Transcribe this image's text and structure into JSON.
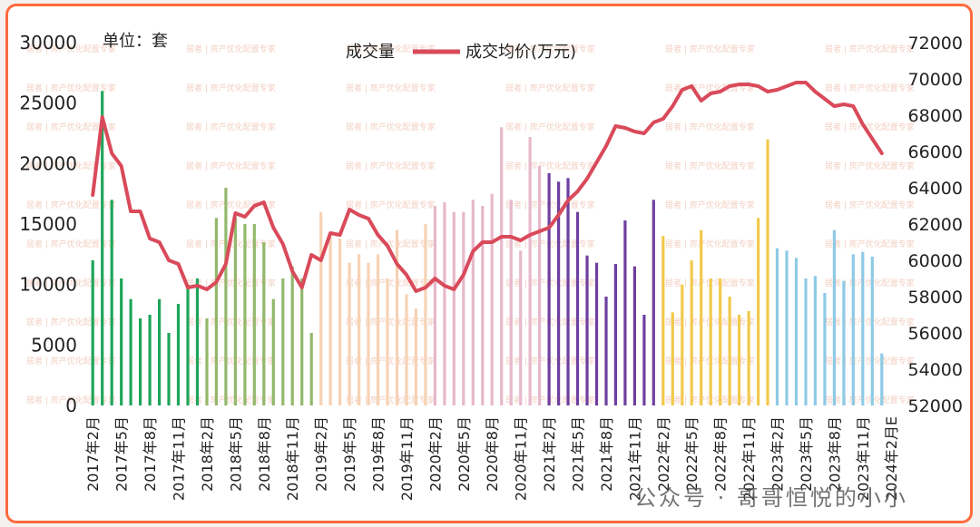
{
  "chart_data": {
    "type": "bar+line",
    "unit_label": "单位：套",
    "legend": [
      "成交量",
      "成交均价(万元)"
    ],
    "y_left": {
      "min": 0,
      "max": 30000,
      "ticks": [
        "0",
        "5000",
        "10000",
        "15000",
        "20000",
        "25000",
        "30000"
      ]
    },
    "y_right": {
      "min": 52000,
      "max": 72000,
      "ticks": [
        "52000",
        "54000",
        "56000",
        "58000",
        "60000",
        "62000",
        "64000",
        "66000",
        "68000",
        "70000",
        "72000"
      ]
    },
    "x_labels": [
      "2017年2月",
      "2017年5月",
      "2017年8月",
      "2017年11月",
      "2018年2月",
      "2018年5月",
      "2018年8月",
      "2018年11月",
      "2019年2月",
      "2019年5月",
      "2019年8月",
      "2019年11月",
      "2020年2月",
      "2020年5月",
      "2020年8月",
      "2020年11月",
      "2021年2月",
      "2021年5月",
      "2021年8月",
      "2021年11月",
      "2022年2月",
      "2022年5月",
      "2022年8月",
      "2022年11月",
      "2023年2月",
      "2023年5月",
      "2023年8月",
      "2023年11月",
      "2024年2月E"
    ],
    "volume": [
      12000,
      26000,
      17000,
      10500,
      8800,
      7200,
      7500,
      8800,
      6000,
      8400,
      10000,
      10500,
      7200,
      15500,
      18000,
      15500,
      15000,
      15000,
      13500,
      8800,
      10500,
      11500,
      10500,
      6000,
      16000,
      14000,
      13800,
      11800,
      12500,
      11800,
      12500,
      10500,
      14500,
      9200,
      8000,
      15000,
      16500,
      16800,
      16000,
      16000,
      17000,
      16500,
      17500,
      23000,
      17000,
      12800,
      22200,
      19800,
      19200,
      18500,
      18800,
      16000,
      12400,
      11800,
      9000,
      11700,
      15300,
      11500,
      7500,
      17000,
      14000,
      7700,
      10000,
      12000,
      14500,
      10500,
      10500,
      9000,
      7500,
      7800,
      15500,
      22000,
      13000,
      12800,
      12200,
      10500,
      10700,
      9300,
      14500,
      10300,
      12500,
      12700,
      12300,
      4300
    ],
    "avg_price": [
      63600,
      67900,
      65900,
      65200,
      62700,
      62700,
      61200,
      61000,
      60000,
      59800,
      58500,
      58600,
      58400,
      58800,
      59800,
      62600,
      62400,
      63000,
      63200,
      61800,
      60900,
      59400,
      58500,
      60300,
      60000,
      61500,
      61400,
      62800,
      62500,
      62300,
      61400,
      60800,
      59800,
      59200,
      58300,
      58500,
      59000,
      58600,
      58400,
      59200,
      60500,
      61000,
      61000,
      61300,
      61300,
      61100,
      61400,
      61600,
      61800,
      62500,
      63300,
      63800,
      64500,
      65400,
      66300,
      67400,
      67300,
      67100,
      67000,
      67600,
      67800,
      68500,
      69400,
      69600,
      68800,
      69200,
      69300,
      69600,
      69700,
      69700,
      69600,
      69300,
      69400,
      69600,
      69800,
      69800,
      69300,
      68900,
      68500,
      68600,
      68500,
      67500,
      66700,
      65900
    ],
    "color_groups": [
      {
        "start": 0,
        "end": 11,
        "color": "#1fa55a"
      },
      {
        "start": 12,
        "end": 23,
        "color": "#93b86b"
      },
      {
        "start": 24,
        "end": 35,
        "color": "#f6d2b4"
      },
      {
        "start": 36,
        "end": 47,
        "color": "#e7b8cb"
      },
      {
        "start": 48,
        "end": 59,
        "color": "#6e3fa0"
      },
      {
        "start": 60,
        "end": 71,
        "color": "#f2c94c"
      },
      {
        "start": 72,
        "end": 83,
        "color": "#8ecae6"
      }
    ],
    "line_color": "#d94a5a"
  },
  "watermark_text": "居者 | 房产优化配置专家",
  "credit": "公众号 · 哥哥恒悦的小小"
}
